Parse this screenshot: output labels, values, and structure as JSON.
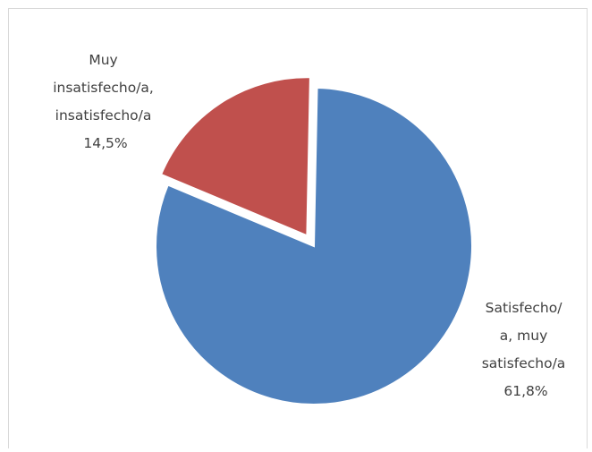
{
  "chart_data": {
    "type": "pie",
    "title": "",
    "slices": [
      {
        "label_lines": [
          "Muy",
          "insatisfecho/a,",
          "insatisfecho/a",
          "14,5%"
        ],
        "value": 14.5,
        "color": "#C0504D",
        "exploded": true
      },
      {
        "label_lines": [
          "Satisfecho/",
          "a, muy",
          "satisfecho/a",
          "61,8%"
        ],
        "value": 61.8,
        "color": "#4F81BD",
        "exploded": false
      }
    ],
    "legend": "none"
  }
}
